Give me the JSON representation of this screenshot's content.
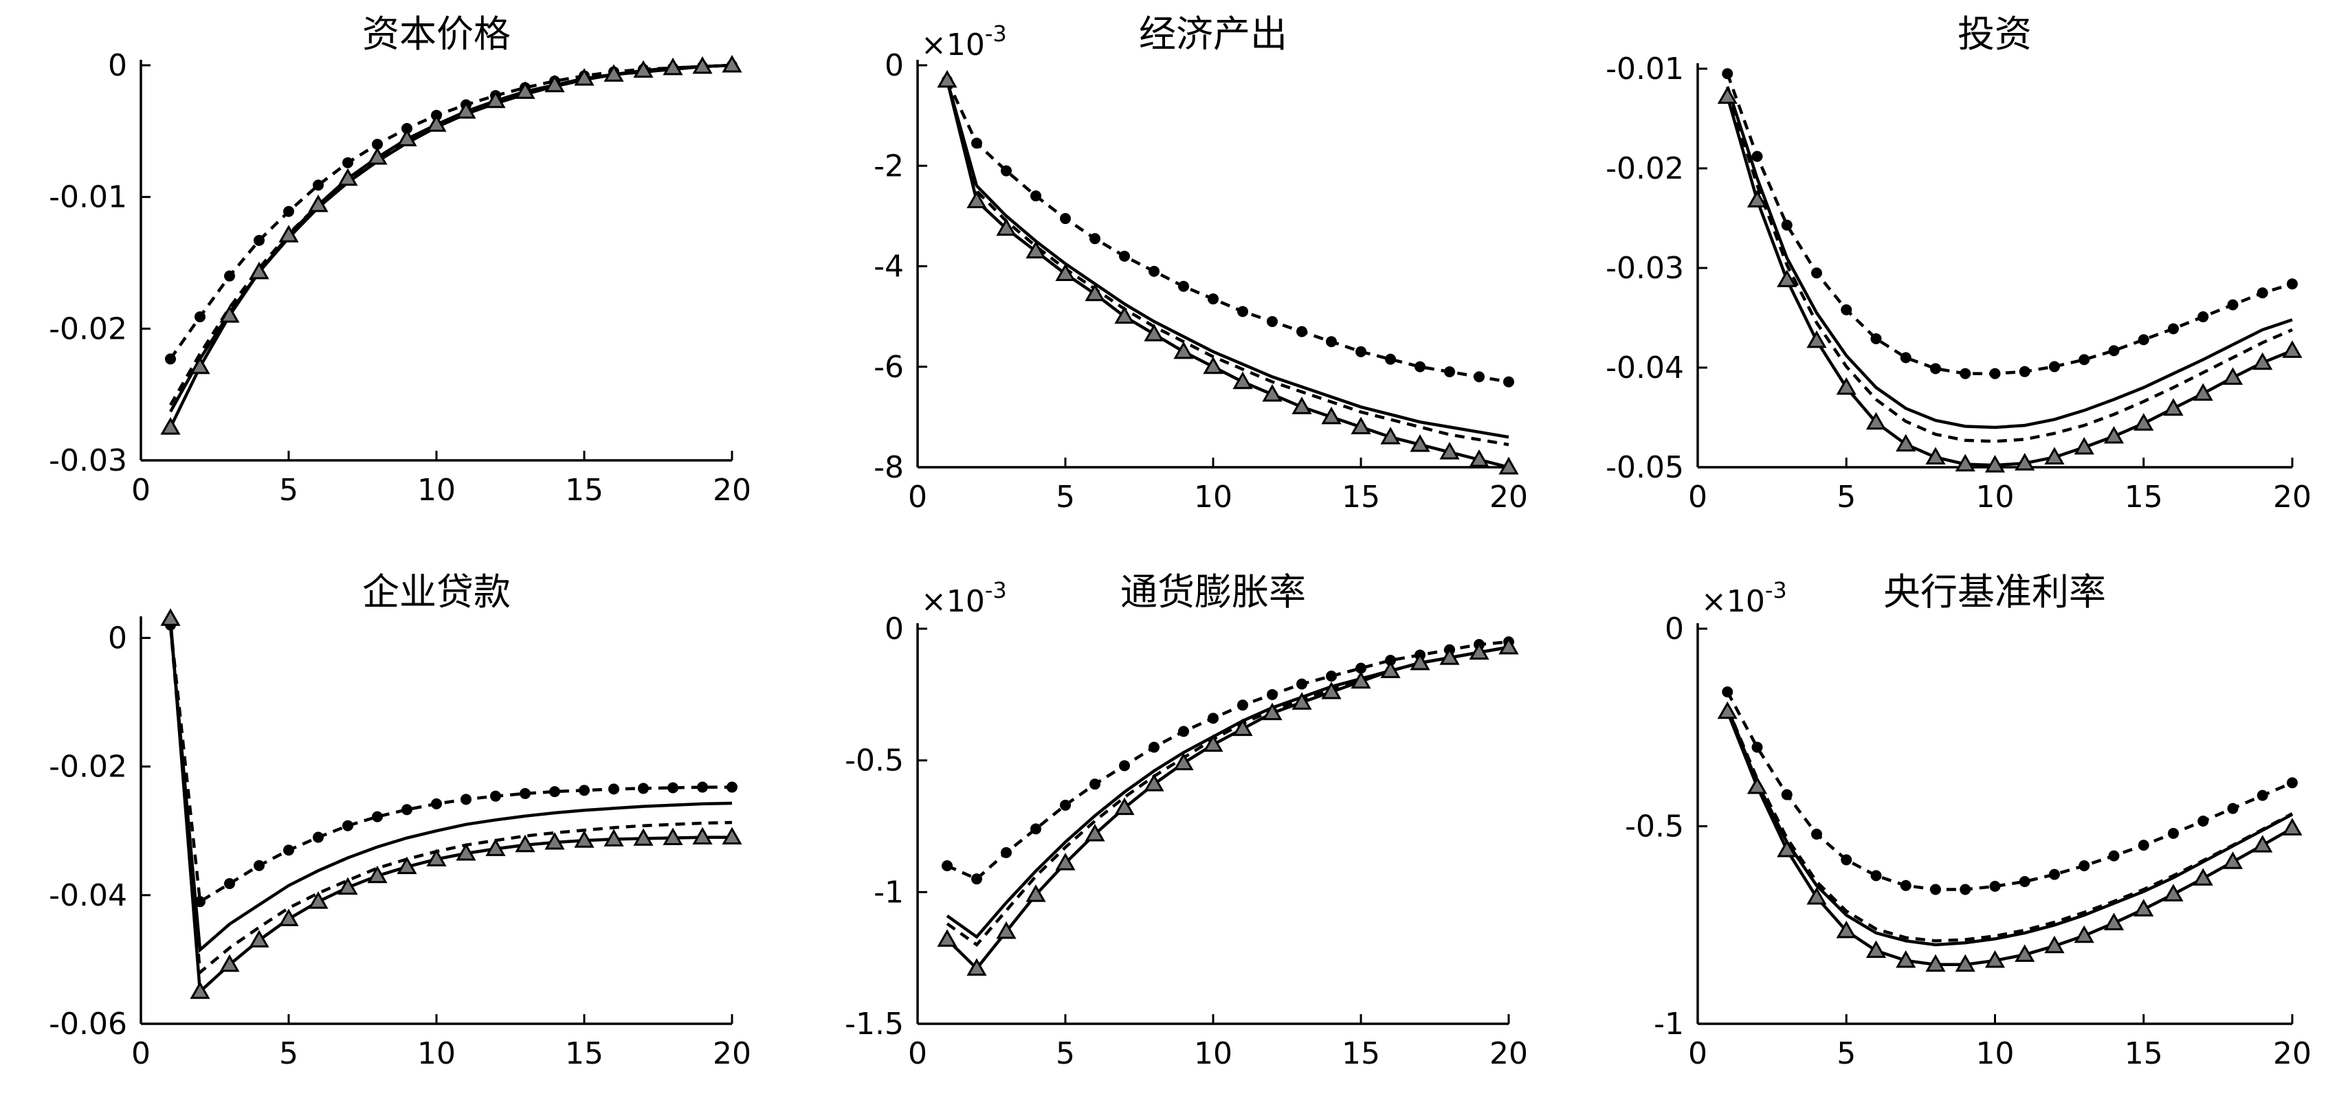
{
  "chart_data": [
    {
      "type": "line",
      "title": "资本价格",
      "exponent_label": "",
      "x": [
        1,
        2,
        3,
        4,
        5,
        6,
        7,
        8,
        9,
        10,
        11,
        12,
        13,
        14,
        15,
        16,
        17,
        18,
        19,
        20
      ],
      "xlim": [
        0,
        20
      ],
      "ylim": [
        -0.03,
        0
      ],
      "xticks": [
        0,
        5,
        10,
        15,
        20
      ],
      "yticks": [
        0,
        -0.01,
        -0.02,
        -0.03
      ],
      "xtick_labels": [
        "0",
        "5",
        "10",
        "15",
        "20"
      ],
      "ytick_labels": [
        "0",
        "-0.01",
        "-0.02",
        "-0.03"
      ],
      "series": [
        {
          "style": "solid",
          "values": [
            -0.0263,
            -0.0223,
            -0.0188,
            -0.0157,
            -0.0131,
            -0.0108,
            -0.0089,
            -0.0073,
            -0.0059,
            -0.0047,
            -0.0037,
            -0.0029,
            -0.0022,
            -0.0016,
            -0.0011,
            -0.0007,
            -0.0005,
            -0.0003,
            -0.0001,
            0.0
          ]
        },
        {
          "style": "dashed",
          "values": [
            -0.0258,
            -0.0219,
            -0.0184,
            -0.0154,
            -0.0128,
            -0.0106,
            -0.0087,
            -0.0071,
            -0.0057,
            -0.0046,
            -0.0036,
            -0.0028,
            -0.0021,
            -0.0016,
            -0.0011,
            -0.0007,
            -0.0005,
            -0.0003,
            -0.0001,
            0.0
          ]
        },
        {
          "style": "dashed",
          "marker": "circle",
          "values": [
            -0.0223,
            -0.0191,
            -0.016,
            -0.0133,
            -0.0111,
            -0.0091,
            -0.0074,
            -0.006,
            -0.0048,
            -0.0038,
            -0.003,
            -0.0023,
            -0.0017,
            -0.0012,
            -0.0008,
            -0.0005,
            -0.0003,
            -0.0002,
            -0.0001,
            0.0
          ]
        },
        {
          "style": "solid",
          "marker": "triangle",
          "values": [
            -0.0275,
            -0.0229,
            -0.019,
            -0.0157,
            -0.0129,
            -0.0106,
            -0.0086,
            -0.007,
            -0.0056,
            -0.0045,
            -0.0035,
            -0.0027,
            -0.002,
            -0.0015,
            -0.001,
            -0.0007,
            -0.0004,
            -0.0002,
            -0.0001,
            0.0
          ]
        }
      ]
    },
    {
      "type": "line",
      "title": "经济产出",
      "exponent_label": "×10",
      "exponent_power": "-3",
      "x": [
        1,
        2,
        3,
        4,
        5,
        6,
        7,
        8,
        9,
        10,
        11,
        12,
        13,
        14,
        15,
        16,
        17,
        18,
        19,
        20
      ],
      "xlim": [
        0,
        20
      ],
      "ylim": [
        -8,
        0
      ],
      "xticks": [
        0,
        5,
        10,
        15,
        20
      ],
      "yticks": [
        0,
        -2,
        -4,
        -6,
        -8
      ],
      "xtick_labels": [
        "0",
        "5",
        "10",
        "15",
        "20"
      ],
      "ytick_labels": [
        "0",
        "-2",
        "-4",
        "-6",
        "-8"
      ],
      "series": [
        {
          "style": "solid",
          "values": [
            -0.3,
            -2.4,
            -3.0,
            -3.5,
            -3.95,
            -4.35,
            -4.75,
            -5.1,
            -5.4,
            -5.7,
            -5.95,
            -6.2,
            -6.4,
            -6.6,
            -6.8,
            -6.95,
            -7.1,
            -7.2,
            -7.3,
            -7.4
          ]
        },
        {
          "style": "dashed",
          "values": [
            -0.3,
            -2.5,
            -3.1,
            -3.6,
            -4.05,
            -4.45,
            -4.85,
            -5.2,
            -5.5,
            -5.8,
            -6.05,
            -6.3,
            -6.5,
            -6.7,
            -6.9,
            -7.05,
            -7.2,
            -7.35,
            -7.45,
            -7.55
          ]
        },
        {
          "style": "dashed",
          "marker": "circle",
          "values": [
            -0.3,
            -1.55,
            -2.1,
            -2.6,
            -3.05,
            -3.45,
            -3.8,
            -4.1,
            -4.4,
            -4.65,
            -4.9,
            -5.1,
            -5.3,
            -5.5,
            -5.7,
            -5.85,
            -6.0,
            -6.1,
            -6.2,
            -6.3
          ]
        },
        {
          "style": "solid",
          "marker": "triangle",
          "values": [
            -0.3,
            -2.7,
            -3.25,
            -3.7,
            -4.15,
            -4.55,
            -5.0,
            -5.35,
            -5.7,
            -6.0,
            -6.3,
            -6.55,
            -6.8,
            -7.0,
            -7.2,
            -7.4,
            -7.55,
            -7.7,
            -7.85,
            -8.0
          ]
        }
      ]
    },
    {
      "type": "line",
      "title": "投资",
      "exponent_label": "",
      "x": [
        1,
        2,
        3,
        4,
        5,
        6,
        7,
        8,
        9,
        10,
        11,
        12,
        13,
        14,
        15,
        16,
        17,
        18,
        19,
        20
      ],
      "xlim": [
        0,
        20
      ],
      "ylim": [
        -0.05,
        -0.01
      ],
      "xticks": [
        0,
        5,
        10,
        15,
        20
      ],
      "yticks": [
        -0.01,
        -0.02,
        -0.03,
        -0.04,
        -0.05
      ],
      "xtick_labels": [
        "0",
        "5",
        "10",
        "15",
        "20"
      ],
      "ytick_labels": [
        "-0.01",
        "-0.02",
        "-0.03",
        "-0.04",
        "-0.05"
      ],
      "series": [
        {
          "style": "solid",
          "values": [
            -0.0118,
            -0.021,
            -0.029,
            -0.0345,
            -0.0388,
            -0.042,
            -0.0441,
            -0.0453,
            -0.0459,
            -0.046,
            -0.0458,
            -0.0452,
            -0.0443,
            -0.0432,
            -0.042,
            -0.0406,
            -0.0392,
            -0.0377,
            -0.0362,
            -0.0352
          ]
        },
        {
          "style": "dashed",
          "values": [
            -0.0122,
            -0.0217,
            -0.0297,
            -0.0355,
            -0.0399,
            -0.0432,
            -0.0454,
            -0.0467,
            -0.0473,
            -0.0474,
            -0.0472,
            -0.0466,
            -0.0458,
            -0.0447,
            -0.0434,
            -0.042,
            -0.0405,
            -0.039,
            -0.0375,
            -0.0362
          ]
        },
        {
          "style": "dashed",
          "marker": "circle",
          "values": [
            -0.0105,
            -0.0188,
            -0.0257,
            -0.0305,
            -0.0342,
            -0.0371,
            -0.039,
            -0.0401,
            -0.0406,
            -0.0406,
            -0.0404,
            -0.0399,
            -0.0392,
            -0.0383,
            -0.0372,
            -0.0361,
            -0.0349,
            -0.0337,
            -0.0325,
            -0.0316
          ]
        },
        {
          "style": "solid",
          "marker": "triangle",
          "values": [
            -0.0128,
            -0.0232,
            -0.0312,
            -0.0373,
            -0.042,
            -0.0455,
            -0.0477,
            -0.049,
            -0.0497,
            -0.0498,
            -0.0496,
            -0.049,
            -0.048,
            -0.0469,
            -0.0456,
            -0.0441,
            -0.0426,
            -0.041,
            -0.0395,
            -0.0383
          ]
        }
      ]
    },
    {
      "type": "line",
      "title": "企业贷款",
      "exponent_label": "",
      "x": [
        1,
        2,
        3,
        4,
        5,
        6,
        7,
        8,
        9,
        10,
        11,
        12,
        13,
        14,
        15,
        16,
        17,
        18,
        19,
        20
      ],
      "xlim": [
        0,
        20
      ],
      "ylim": [
        -0.06,
        0.0025
      ],
      "xticks": [
        0,
        5,
        10,
        15,
        20
      ],
      "yticks": [
        0,
        -0.02,
        -0.04,
        -0.06
      ],
      "xtick_labels": [
        "0",
        "5",
        "10",
        "15",
        "20"
      ],
      "ytick_labels": [
        "0",
        "-0.02",
        "-0.04",
        "-0.06"
      ],
      "series": [
        {
          "style": "solid",
          "values": [
            0.002,
            -0.0485,
            -0.0445,
            -0.0415,
            -0.0385,
            -0.0362,
            -0.0342,
            -0.0325,
            -0.0311,
            -0.03,
            -0.029,
            -0.0283,
            -0.0277,
            -0.0272,
            -0.0268,
            -0.0265,
            -0.0262,
            -0.026,
            -0.0258,
            -0.0257
          ]
        },
        {
          "style": "dashed",
          "values": [
            0.002,
            -0.052,
            -0.0482,
            -0.045,
            -0.042,
            -0.0397,
            -0.0377,
            -0.0358,
            -0.0344,
            -0.0332,
            -0.0322,
            -0.0315,
            -0.0308,
            -0.0303,
            -0.0299,
            -0.0295,
            -0.0292,
            -0.029,
            -0.0288,
            -0.0287
          ]
        },
        {
          "style": "dashed",
          "marker": "circle",
          "values": [
            0.002,
            -0.041,
            -0.0382,
            -0.0354,
            -0.033,
            -0.031,
            -0.0292,
            -0.0278,
            -0.0267,
            -0.0258,
            -0.0251,
            -0.0246,
            -0.0242,
            -0.0239,
            -0.0237,
            -0.0235,
            -0.0234,
            -0.0233,
            -0.0232,
            -0.0232
          ]
        },
        {
          "style": "solid",
          "marker": "triangle",
          "values": [
            0.003,
            -0.055,
            -0.0508,
            -0.047,
            -0.0437,
            -0.041,
            -0.0388,
            -0.037,
            -0.0356,
            -0.0344,
            -0.0335,
            -0.0328,
            -0.0322,
            -0.0318,
            -0.0315,
            -0.0313,
            -0.0312,
            -0.0311,
            -0.031,
            -0.031
          ]
        }
      ]
    },
    {
      "type": "line",
      "title": "通货膨胀率",
      "exponent_label": "×10",
      "exponent_power": "-3",
      "x": [
        1,
        2,
        3,
        4,
        5,
        6,
        7,
        8,
        9,
        10,
        11,
        12,
        13,
        14,
        15,
        16,
        17,
        18,
        19,
        20
      ],
      "xlim": [
        0,
        20
      ],
      "ylim": [
        -1.5,
        0
      ],
      "xticks": [
        0,
        5,
        10,
        15,
        20
      ],
      "yticks": [
        0,
        -0.5,
        -1,
        -1.5
      ],
      "xtick_labels": [
        "0",
        "5",
        "10",
        "15",
        "20"
      ],
      "ytick_labels": [
        "0",
        "-0.5",
        "-1",
        "-1.5"
      ],
      "series": [
        {
          "style": "solid",
          "values": [
            -1.09,
            -1.17,
            -1.04,
            -0.92,
            -0.81,
            -0.71,
            -0.62,
            -0.54,
            -0.47,
            -0.41,
            -0.35,
            -0.3,
            -0.26,
            -0.22,
            -0.19,
            -0.16,
            -0.13,
            -0.11,
            -0.09,
            -0.07
          ]
        },
        {
          "style": "dashed",
          "values": [
            -1.12,
            -1.2,
            -1.07,
            -0.94,
            -0.83,
            -0.73,
            -0.64,
            -0.56,
            -0.49,
            -0.42,
            -0.36,
            -0.31,
            -0.27,
            -0.23,
            -0.19,
            -0.16,
            -0.13,
            -0.11,
            -0.09,
            -0.07
          ]
        },
        {
          "style": "dashed",
          "marker": "circle",
          "values": [
            -0.9,
            -0.95,
            -0.85,
            -0.76,
            -0.67,
            -0.59,
            -0.52,
            -0.45,
            -0.39,
            -0.34,
            -0.29,
            -0.25,
            -0.21,
            -0.18,
            -0.15,
            -0.12,
            -0.1,
            -0.08,
            -0.06,
            -0.05
          ]
        },
        {
          "style": "solid",
          "marker": "triangle",
          "values": [
            -1.18,
            -1.29,
            -1.15,
            -1.01,
            -0.89,
            -0.78,
            -0.68,
            -0.59,
            -0.51,
            -0.44,
            -0.38,
            -0.32,
            -0.28,
            -0.24,
            -0.2,
            -0.16,
            -0.13,
            -0.11,
            -0.09,
            -0.07
          ]
        }
      ]
    },
    {
      "type": "line",
      "title": "央行基准利率",
      "exponent_label": "×10",
      "exponent_power": "-3",
      "x": [
        1,
        2,
        3,
        4,
        5,
        6,
        7,
        8,
        9,
        10,
        11,
        12,
        13,
        14,
        15,
        16,
        17,
        18,
        19,
        20
      ],
      "xlim": [
        0,
        20
      ],
      "ylim": [
        -1,
        0
      ],
      "xticks": [
        0,
        5,
        10,
        15,
        20
      ],
      "yticks": [
        0,
        -0.5,
        -1
      ],
      "xtick_labels": [
        "0",
        "5",
        "10",
        "15",
        "20"
      ],
      "ytick_labels": [
        "0",
        "-0.5",
        "-1"
      ],
      "series": [
        {
          "style": "solid",
          "values": [
            -0.2,
            -0.39,
            -0.54,
            -0.65,
            -0.725,
            -0.77,
            -0.79,
            -0.8,
            -0.795,
            -0.785,
            -0.77,
            -0.75,
            -0.725,
            -0.695,
            -0.665,
            -0.63,
            -0.59,
            -0.55,
            -0.51,
            -0.47
          ]
        },
        {
          "style": "dashed",
          "values": [
            -0.2,
            -0.38,
            -0.53,
            -0.64,
            -0.715,
            -0.76,
            -0.782,
            -0.79,
            -0.787,
            -0.778,
            -0.763,
            -0.743,
            -0.718,
            -0.69,
            -0.66,
            -0.625,
            -0.587,
            -0.548,
            -0.508,
            -0.468
          ]
        },
        {
          "style": "dashed",
          "marker": "circle",
          "values": [
            -0.16,
            -0.3,
            -0.42,
            -0.52,
            -0.585,
            -0.625,
            -0.65,
            -0.66,
            -0.66,
            -0.652,
            -0.64,
            -0.622,
            -0.6,
            -0.575,
            -0.548,
            -0.518,
            -0.487,
            -0.455,
            -0.422,
            -0.39
          ]
        },
        {
          "style": "solid",
          "marker": "triangle",
          "values": [
            -0.21,
            -0.4,
            -0.56,
            -0.68,
            -0.765,
            -0.815,
            -0.84,
            -0.85,
            -0.85,
            -0.84,
            -0.825,
            -0.803,
            -0.777,
            -0.745,
            -0.71,
            -0.672,
            -0.632,
            -0.59,
            -0.548,
            -0.505
          ]
        }
      ]
    }
  ]
}
